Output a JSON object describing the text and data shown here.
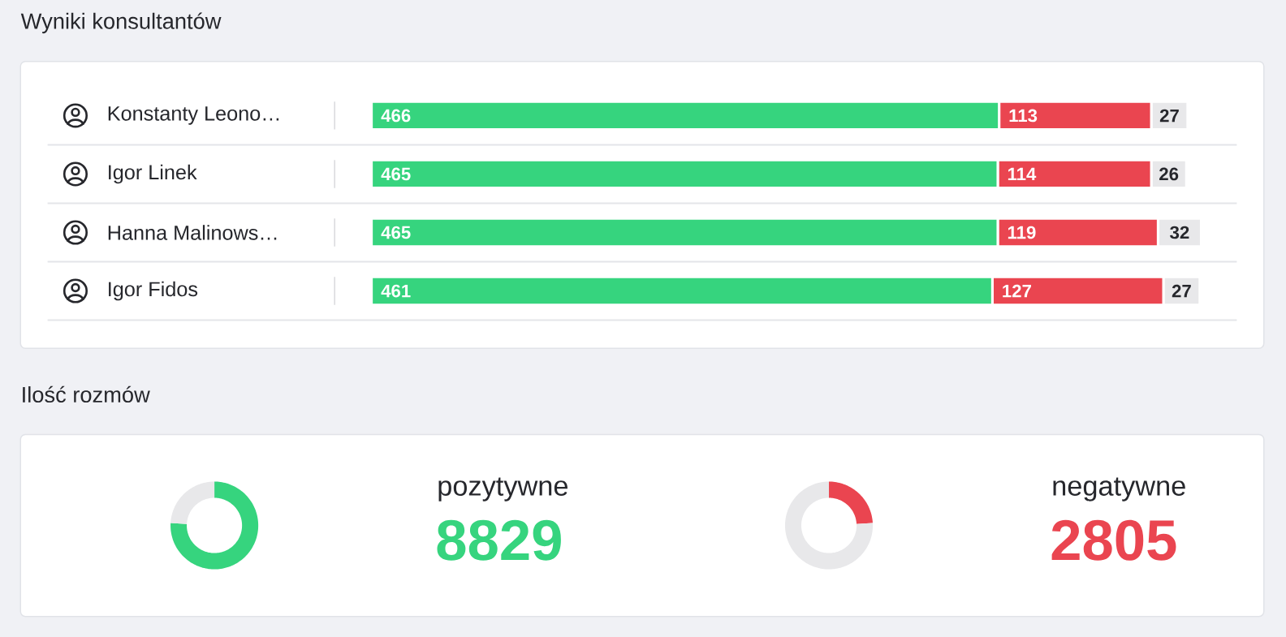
{
  "chart_data": [
    {
      "type": "bar",
      "orientation": "horizontal",
      "stacked": true,
      "title": "Wyniki konsultantów",
      "categories": [
        "Konstanty Leono…",
        "Igor Linek",
        "Hanna Malinows…",
        "Igor Fidos"
      ],
      "series": [
        {
          "color": "#36d47e",
          "values": [
            466,
            465,
            465,
            461
          ]
        },
        {
          "color": "#ea4550",
          "values": [
            113,
            114,
            119,
            127
          ]
        },
        {
          "color": "#e8e8ea",
          "values": [
            27,
            26,
            32,
            27
          ]
        }
      ],
      "data_labels": true
    },
    {
      "type": "donut",
      "title": "Ilość rozmów",
      "categories": [
        "pozytywne",
        null
      ],
      "values": [
        8829,
        2805
      ],
      "colors": [
        "#36d47e",
        "#e8e8ea"
      ],
      "value_labels": [
        "8829",
        null
      ]
    },
    {
      "type": "donut",
      "categories": [
        "negatywne",
        null
      ],
      "values": [
        2805,
        8829
      ],
      "colors": [
        "#ea4550",
        "#e8e8ea"
      ],
      "value_labels": [
        "2805",
        null
      ]
    }
  ]
}
